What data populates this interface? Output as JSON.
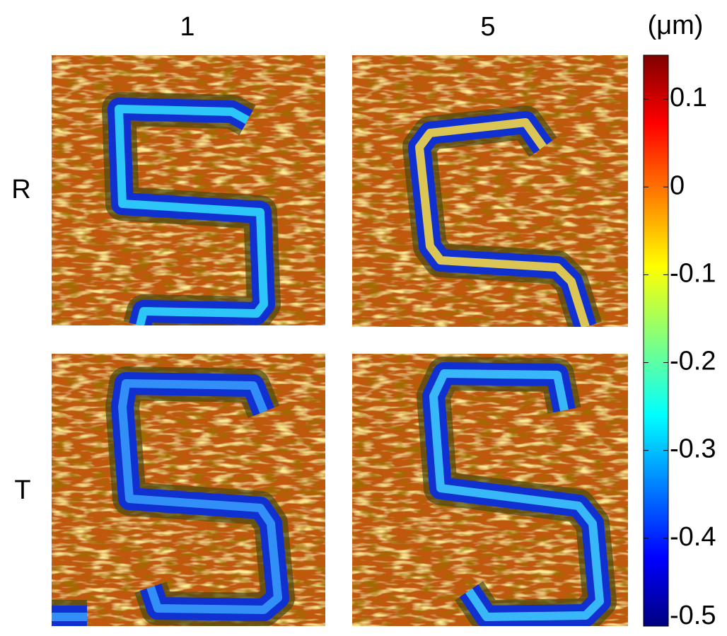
{
  "column_labels": [
    "1",
    "5"
  ],
  "row_labels": [
    "R",
    "T"
  ],
  "colorbar": {
    "label": "(μm)",
    "lim": [
      -0.5,
      0.15
    ],
    "ticks": [
      0.1,
      0,
      -0.1,
      -0.2,
      -0.3,
      -0.4,
      -0.5
    ],
    "colormap": "jet"
  }
}
